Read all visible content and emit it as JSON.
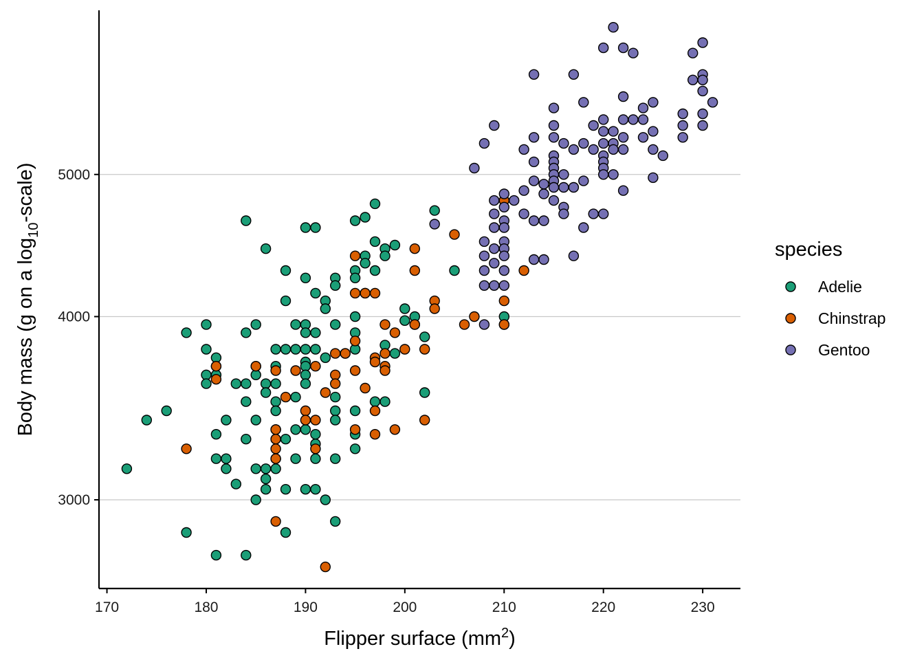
{
  "chart_data": {
    "type": "scatter",
    "xlabel": "Flipper surface (mm2)",
    "ylabel": "Body mass (g on a log10-scale)",
    "x_range": [
      169.2,
      233.8
    ],
    "y_range": [
      2610,
      6470
    ],
    "y_scale": "log10",
    "x_ticks": [
      170,
      180,
      190,
      200,
      210,
      220,
      230
    ],
    "y_ticks": [
      3000,
      4000,
      5000
    ],
    "grid": "horizontal major only",
    "legend": {
      "title": "species",
      "position": "right"
    },
    "series": [
      {
        "name": "Adelie",
        "color": "#1B9E77",
        "points": [
          [
            172,
            3150
          ],
          [
            174,
            3400
          ],
          [
            176,
            3450
          ],
          [
            178,
            3900
          ],
          [
            178,
            2850
          ],
          [
            180,
            3950
          ],
          [
            180,
            3800
          ],
          [
            180,
            3650
          ],
          [
            180,
            3600
          ],
          [
            181,
            3750
          ],
          [
            181,
            3700
          ],
          [
            181,
            3650
          ],
          [
            181,
            3325
          ],
          [
            181,
            3200
          ],
          [
            181,
            2750
          ],
          [
            182,
            3200
          ],
          [
            182,
            3150
          ],
          [
            182,
            3400
          ],
          [
            183,
            3600
          ],
          [
            183,
            3075
          ],
          [
            184,
            4650
          ],
          [
            184,
            3900
          ],
          [
            184,
            3600
          ],
          [
            184,
            3500
          ],
          [
            184,
            3300
          ],
          [
            184,
            2750
          ],
          [
            185,
            3950
          ],
          [
            185,
            3700
          ],
          [
            185,
            3650
          ],
          [
            185,
            3400
          ],
          [
            185,
            3150
          ],
          [
            185,
            3000
          ],
          [
            186,
            4450
          ],
          [
            186,
            3600
          ],
          [
            186,
            3550
          ],
          [
            186,
            3150
          ],
          [
            186,
            3100
          ],
          [
            186,
            3050
          ],
          [
            187,
            3800
          ],
          [
            187,
            3700
          ],
          [
            187,
            3600
          ],
          [
            187,
            3500
          ],
          [
            187,
            3450
          ],
          [
            187,
            3350
          ],
          [
            187,
            3300
          ],
          [
            187,
            3200
          ],
          [
            187,
            3150
          ],
          [
            188,
            4300
          ],
          [
            188,
            4100
          ],
          [
            188,
            3800
          ],
          [
            188,
            3300
          ],
          [
            188,
            3050
          ],
          [
            188,
            2850
          ],
          [
            189,
            3950
          ],
          [
            189,
            3800
          ],
          [
            189,
            3525
          ],
          [
            189,
            3350
          ],
          [
            189,
            3200
          ],
          [
            190,
            4600
          ],
          [
            190,
            4250
          ],
          [
            190,
            3950
          ],
          [
            190,
            3900
          ],
          [
            190,
            3800
          ],
          [
            190,
            3725
          ],
          [
            190,
            3700
          ],
          [
            190,
            3650
          ],
          [
            190,
            3600
          ],
          [
            190,
            3350
          ],
          [
            190,
            3050
          ],
          [
            191,
            4600
          ],
          [
            191,
            4150
          ],
          [
            191,
            3900
          ],
          [
            191,
            3800
          ],
          [
            191,
            3325
          ],
          [
            191,
            3275
          ],
          [
            191,
            3200
          ],
          [
            191,
            3050
          ],
          [
            192,
            4100
          ],
          [
            192,
            4050
          ],
          [
            192,
            3750
          ],
          [
            192,
            3000
          ],
          [
            193,
            4250
          ],
          [
            193,
            4200
          ],
          [
            193,
            3950
          ],
          [
            193,
            3525
          ],
          [
            193,
            3450
          ],
          [
            193,
            3400
          ],
          [
            193,
            3200
          ],
          [
            193,
            2900
          ],
          [
            194,
            3775
          ],
          [
            195,
            4650
          ],
          [
            195,
            4300
          ],
          [
            195,
            4250
          ],
          [
            195,
            4000
          ],
          [
            195,
            3900
          ],
          [
            195,
            3800
          ],
          [
            195,
            3450
          ],
          [
            195,
            3325
          ],
          [
            195,
            3250
          ],
          [
            196,
            4675
          ],
          [
            196,
            4400
          ],
          [
            196,
            4350
          ],
          [
            196,
            4150
          ],
          [
            197,
            4775
          ],
          [
            197,
            4500
          ],
          [
            197,
            4300
          ],
          [
            197,
            3500
          ],
          [
            198,
            4450
          ],
          [
            198,
            4400
          ],
          [
            198,
            3825
          ],
          [
            198,
            3500
          ],
          [
            199,
            4475
          ],
          [
            199,
            3775
          ],
          [
            200,
            4050
          ],
          [
            200,
            3975
          ],
          [
            201,
            4000
          ],
          [
            201,
            3950
          ],
          [
            202,
            3875
          ],
          [
            202,
            3550
          ],
          [
            203,
            4725
          ],
          [
            205,
            4300
          ],
          [
            210,
            4000
          ],
          [
            210,
            3950
          ]
        ]
      },
      {
        "name": "Chinstrap",
        "color": "#D95F02",
        "points": [
          [
            178,
            3250
          ],
          [
            181,
            3700
          ],
          [
            181,
            3625
          ],
          [
            185,
            3700
          ],
          [
            187,
            3675
          ],
          [
            187,
            3350
          ],
          [
            187,
            3300
          ],
          [
            187,
            3250
          ],
          [
            187,
            3200
          ],
          [
            187,
            2900
          ],
          [
            188,
            3525
          ],
          [
            189,
            3675
          ],
          [
            190,
            3450
          ],
          [
            190,
            3400
          ],
          [
            191,
            3700
          ],
          [
            191,
            3400
          ],
          [
            191,
            3250
          ],
          [
            192,
            3550
          ],
          [
            192,
            2700
          ],
          [
            193,
            3650
          ],
          [
            193,
            3600
          ],
          [
            193,
            3775
          ],
          [
            194,
            3775
          ],
          [
            195,
            4400
          ],
          [
            195,
            4150
          ],
          [
            195,
            3850
          ],
          [
            195,
            3675
          ],
          [
            195,
            3350
          ],
          [
            196,
            3575
          ],
          [
            196,
            4150
          ],
          [
            197,
            4150
          ],
          [
            197,
            3750
          ],
          [
            197,
            3725
          ],
          [
            197,
            3450
          ],
          [
            197,
            3325
          ],
          [
            198,
            3950
          ],
          [
            198,
            3775
          ],
          [
            198,
            3700
          ],
          [
            198,
            3675
          ],
          [
            199,
            3900
          ],
          [
            199,
            3350
          ],
          [
            200,
            3800
          ],
          [
            201,
            4450
          ],
          [
            201,
            4300
          ],
          [
            201,
            3950
          ],
          [
            202,
            3800
          ],
          [
            202,
            3400
          ],
          [
            203,
            4100
          ],
          [
            203,
            4050
          ],
          [
            205,
            4550
          ],
          [
            206,
            3950
          ],
          [
            207,
            4000
          ],
          [
            210,
            4800
          ],
          [
            210,
            4100
          ],
          [
            210,
            3950
          ],
          [
            212,
            4300
          ]
        ]
      },
      {
        "name": "Gentoo",
        "color": "#7570B3",
        "points": [
          [
            203,
            4625
          ],
          [
            207,
            5050
          ],
          [
            208,
            5250
          ],
          [
            208,
            4500
          ],
          [
            208,
            4400
          ],
          [
            208,
            4300
          ],
          [
            208,
            4200
          ],
          [
            208,
            3950
          ],
          [
            209,
            5400
          ],
          [
            209,
            4800
          ],
          [
            209,
            4700
          ],
          [
            209,
            4600
          ],
          [
            209,
            4450
          ],
          [
            209,
            4350
          ],
          [
            209,
            4200
          ],
          [
            210,
            4850
          ],
          [
            210,
            4750
          ],
          [
            210,
            4650
          ],
          [
            210,
            4600
          ],
          [
            210,
            4500
          ],
          [
            210,
            4450
          ],
          [
            210,
            4400
          ],
          [
            210,
            4300
          ],
          [
            210,
            4200
          ],
          [
            211,
            4800
          ],
          [
            212,
            5200
          ],
          [
            212,
            4875
          ],
          [
            212,
            4700
          ],
          [
            213,
            5850
          ],
          [
            213,
            5300
          ],
          [
            213,
            5100
          ],
          [
            213,
            4950
          ],
          [
            213,
            4650
          ],
          [
            213,
            4375
          ],
          [
            214,
            4925
          ],
          [
            214,
            4850
          ],
          [
            214,
            4650
          ],
          [
            214,
            4375
          ],
          [
            215,
            5550
          ],
          [
            215,
            5400
          ],
          [
            215,
            5300
          ],
          [
            215,
            5150
          ],
          [
            215,
            5100
          ],
          [
            215,
            5050
          ],
          [
            215,
            5000
          ],
          [
            215,
            4950
          ],
          [
            215,
            4900
          ],
          [
            215,
            4800
          ],
          [
            216,
            5250
          ],
          [
            216,
            5000
          ],
          [
            216,
            4900
          ],
          [
            216,
            4750
          ],
          [
            216,
            4700
          ],
          [
            217,
            5850
          ],
          [
            217,
            5200
          ],
          [
            217,
            4900
          ],
          [
            217,
            4400
          ],
          [
            218,
            5600
          ],
          [
            218,
            5250
          ],
          [
            218,
            4950
          ],
          [
            218,
            4600
          ],
          [
            219,
            5400
          ],
          [
            219,
            5200
          ],
          [
            219,
            4700
          ],
          [
            220,
            6100
          ],
          [
            220,
            5450
          ],
          [
            220,
            5350
          ],
          [
            220,
            5250
          ],
          [
            220,
            5150
          ],
          [
            220,
            5100
          ],
          [
            220,
            5050
          ],
          [
            220,
            5000
          ],
          [
            220,
            4700
          ],
          [
            221,
            6300
          ],
          [
            221,
            5350
          ],
          [
            221,
            5250
          ],
          [
            221,
            5200
          ],
          [
            221,
            5000
          ],
          [
            222,
            6100
          ],
          [
            222,
            5650
          ],
          [
            222,
            5450
          ],
          [
            222,
            5300
          ],
          [
            222,
            5200
          ],
          [
            222,
            4875
          ],
          [
            223,
            6050
          ],
          [
            223,
            5450
          ],
          [
            224,
            5550
          ],
          [
            224,
            5450
          ],
          [
            224,
            5300
          ],
          [
            225,
            5600
          ],
          [
            225,
            5350
          ],
          [
            225,
            5200
          ],
          [
            225,
            4975
          ],
          [
            226,
            5150
          ],
          [
            228,
            5500
          ],
          [
            228,
            5400
          ],
          [
            228,
            5300
          ],
          [
            229,
            6050
          ],
          [
            229,
            5800
          ],
          [
            230,
            6150
          ],
          [
            230,
            5850
          ],
          [
            230,
            5800
          ],
          [
            230,
            5700
          ],
          [
            230,
            5500
          ],
          [
            230,
            5400
          ],
          [
            231,
            5600
          ]
        ]
      }
    ]
  }
}
